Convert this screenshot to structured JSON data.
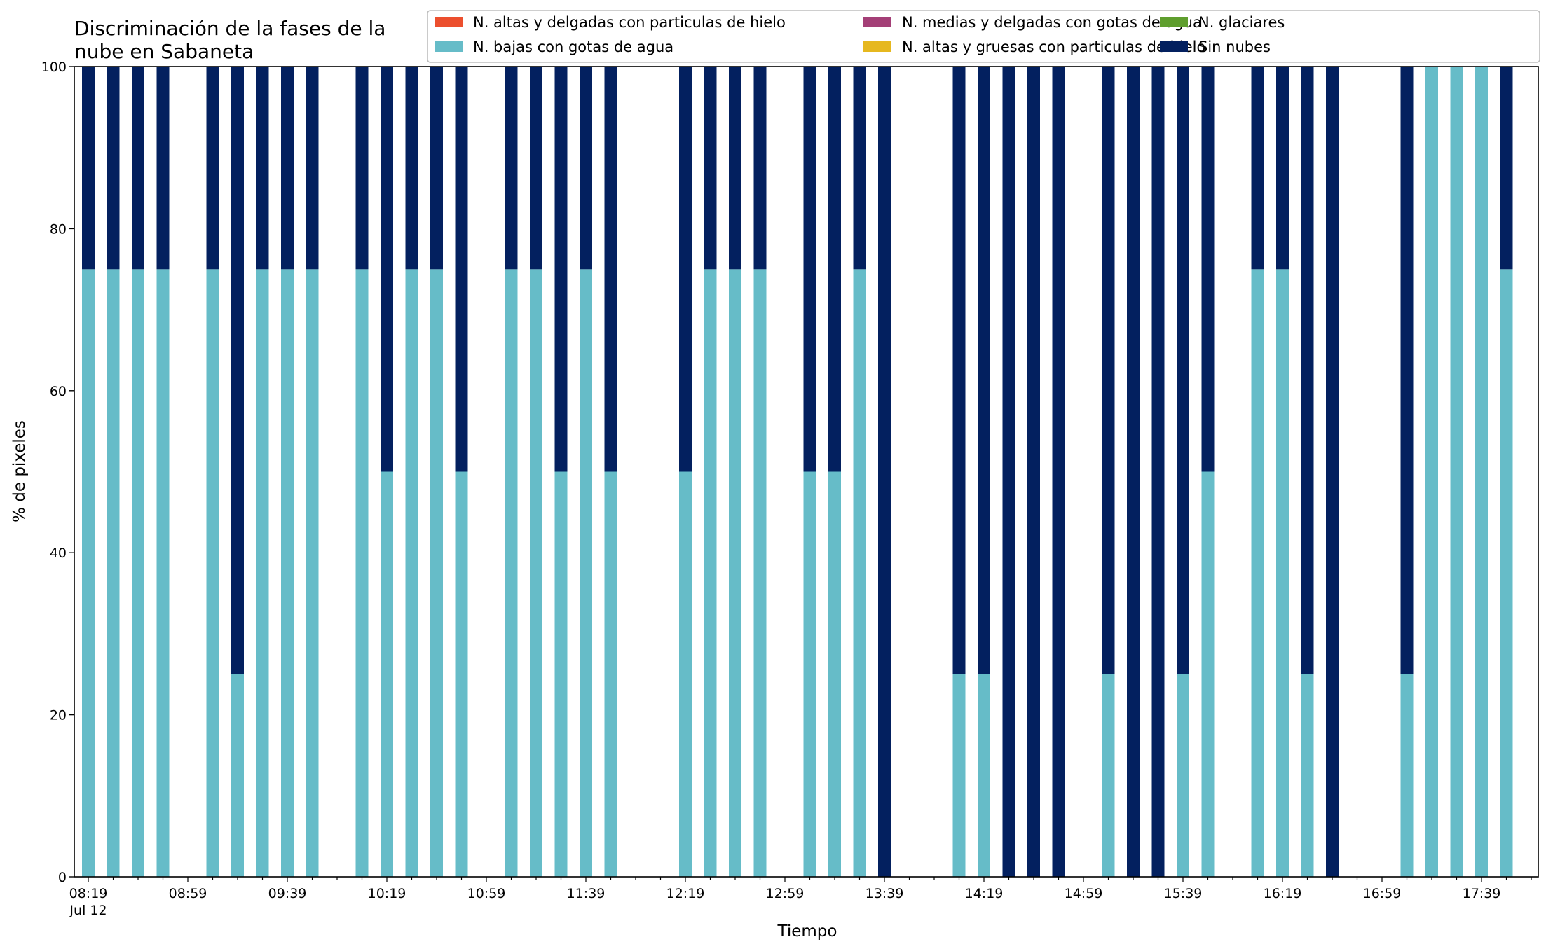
{
  "chart_data": {
    "type": "bar",
    "stacked": true,
    "title_lines": [
      "Discriminación de la fases de la",
      "nube en Sabaneta"
    ],
    "xlabel": "Tiempo",
    "ylabel": "% de pixeles",
    "ylim": [
      0,
      100
    ],
    "yticks": [
      "0",
      "20",
      "40",
      "60",
      "80",
      "100"
    ],
    "x_start": "08:19",
    "x_step_minutes": 10,
    "x_count": 59,
    "xtick_labels": [
      "08:19",
      "08:59",
      "09:39",
      "10:19",
      "10:59",
      "11:39",
      "12:19",
      "12:59",
      "13:39",
      "14:19",
      "14:59",
      "15:39",
      "16:19",
      "16:59",
      "17:39"
    ],
    "xtick_sublabel": "Jul 12",
    "legend": {
      "placement": "top-right",
      "entries": [
        {
          "name": "N. altas y delgadas con particulas de hielo",
          "color": "#ec4f2e"
        },
        {
          "name": "N. bajas con gotas de agua",
          "color": "#66bcc8"
        },
        {
          "name": "N. medias y delgadas con gotas de agua",
          "color": "#a43f77"
        },
        {
          "name": "N. altas y gruesas con particulas de hielo",
          "color": "#e6b81f"
        },
        {
          "name": "N. glaciares",
          "color": "#5f9e2e"
        },
        {
          "name": "Sin nubes",
          "color": "#03205f"
        }
      ]
    },
    "series": [
      {
        "name": "N. bajas con gotas de agua",
        "color": "#66bcc8",
        "values": [
          75,
          75,
          75,
          75,
          null,
          75,
          25,
          75,
          75,
          75,
          null,
          75,
          50,
          75,
          75,
          50,
          null,
          75,
          75,
          50,
          75,
          50,
          null,
          null,
          50,
          75,
          75,
          75,
          null,
          50,
          50,
          75,
          0,
          null,
          null,
          25,
          25,
          0,
          0,
          0,
          null,
          25,
          0,
          0,
          25,
          50,
          null,
          75,
          75,
          25,
          0,
          null,
          null,
          25,
          100,
          100,
          100,
          75,
          null
        ]
      },
      {
        "name": "Sin nubes",
        "color": "#03205f",
        "values": [
          25,
          25,
          25,
          25,
          null,
          25,
          75,
          25,
          25,
          25,
          null,
          25,
          50,
          25,
          25,
          50,
          null,
          25,
          25,
          50,
          25,
          50,
          null,
          null,
          50,
          25,
          25,
          25,
          null,
          50,
          50,
          25,
          100,
          null,
          null,
          75,
          75,
          100,
          100,
          100,
          null,
          75,
          100,
          100,
          75,
          50,
          null,
          25,
          25,
          75,
          100,
          null,
          null,
          75,
          0,
          0,
          0,
          25,
          null
        ]
      }
    ]
  }
}
